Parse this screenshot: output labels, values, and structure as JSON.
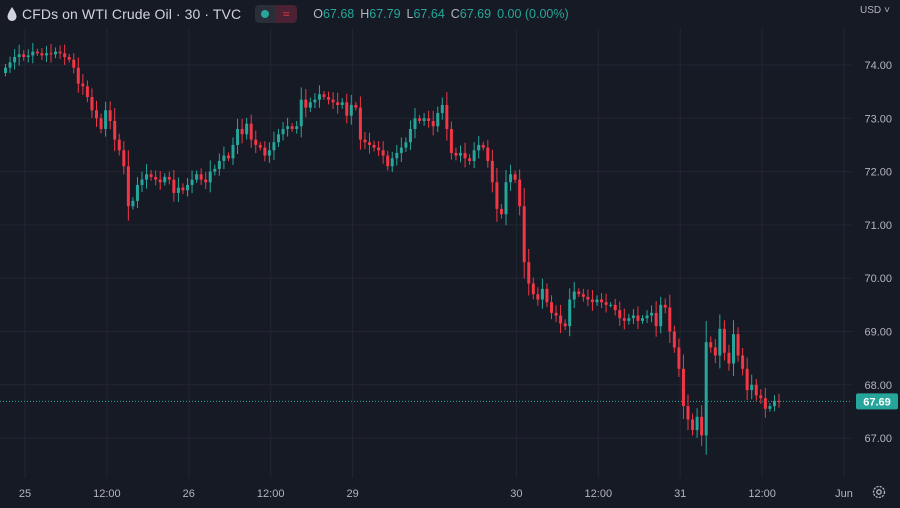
{
  "header": {
    "title": "CFDs on WTI Crude Oil · 30 · TVC",
    "legend_symbol": "≈",
    "ohlc": {
      "o_key": "O",
      "o": "67.68",
      "h_key": "H",
      "h": "67.79",
      "l_key": "L",
      "l": "67.64",
      "c_key": "C",
      "c": "67.69",
      "change": "0.00 (0.00%)"
    }
  },
  "currency": {
    "label": "USD",
    "arrow": "˅"
  },
  "colors": {
    "background": "#161a25",
    "up": "#26a69a",
    "down": "#f23645",
    "grid": "#232632",
    "axis_text": "#b2b5be",
    "price_line": "#26a69a"
  },
  "icons": {
    "drop": "drop-icon",
    "settings": "gear-icon"
  },
  "chart_data": {
    "type": "candlestick",
    "title": "CFDs on WTI Crude Oil · 30 · TVC",
    "xlabel": "",
    "ylabel": "",
    "ylim": [
      66.5,
      74.5
    ],
    "y_ticks": [
      "74.00",
      "73.00",
      "72.00",
      "71.00",
      "70.00",
      "69.00",
      "68.00",
      "67.00"
    ],
    "x_ticks": [
      "25",
      "12:00",
      "26",
      "12:00",
      "29",
      "30",
      "12:00",
      "31",
      "12:00",
      "Jun"
    ],
    "x_tick_index": [
      0,
      18,
      36,
      54,
      72,
      108,
      126,
      144,
      162,
      180
    ],
    "last_price": 67.69,
    "last_price_label": "67.69",
    "currency": "USD",
    "grid": true,
    "close": [
      73.95,
      74.05,
      74.15,
      74.2,
      74.15,
      74.18,
      74.25,
      74.22,
      74.18,
      74.22,
      74.2,
      74.25,
      74.22,
      74.15,
      74.1,
      73.95,
      73.65,
      73.6,
      73.4,
      73.15,
      73.0,
      72.8,
      73.15,
      72.95,
      72.6,
      72.4,
      72.1,
      71.35,
      71.45,
      71.75,
      71.85,
      71.95,
      71.9,
      71.85,
      71.8,
      71.9,
      71.85,
      71.6,
      71.7,
      71.65,
      71.75,
      71.85,
      71.95,
      71.85,
      71.8,
      72.0,
      72.05,
      72.2,
      72.3,
      72.25,
      72.5,
      72.8,
      72.7,
      72.9,
      72.6,
      72.5,
      72.45,
      72.3,
      72.4,
      72.55,
      72.7,
      72.8,
      72.85,
      72.8,
      72.85,
      73.35,
      73.2,
      73.3,
      73.35,
      73.45,
      73.4,
      73.35,
      73.3,
      73.25,
      73.3,
      73.05,
      73.25,
      73.2,
      72.6,
      72.55,
      72.5,
      72.45,
      72.4,
      72.3,
      72.1,
      72.25,
      72.35,
      72.45,
      72.55,
      72.8,
      73.0,
      72.95,
      73.0,
      72.95,
      72.85,
      73.1,
      73.25,
      72.8,
      72.35,
      72.3,
      72.35,
      72.25,
      72.2,
      72.4,
      72.5,
      72.45,
      72.2,
      71.8,
      71.3,
      71.2,
      71.8,
      71.95,
      71.85,
      71.35,
      70.3,
      69.9,
      69.7,
      69.6,
      69.8,
      69.55,
      69.35,
      69.3,
      69.15,
      69.1,
      69.6,
      69.75,
      69.7,
      69.65,
      69.6,
      69.55,
      69.6,
      69.55,
      69.5,
      69.5,
      69.4,
      69.25,
      69.2,
      69.25,
      69.3,
      69.2,
      69.25,
      69.3,
      69.35,
      69.1,
      69.5,
      69.45,
      69.0,
      68.7,
      68.3,
      67.6,
      67.35,
      67.15,
      67.4,
      67.05,
      68.8,
      68.7,
      68.55,
      69.05,
      68.6,
      68.4,
      68.95,
      68.55,
      68.3,
      67.9,
      68.0,
      67.8,
      67.75,
      67.55,
      67.6,
      67.7,
      67.69
    ]
  }
}
